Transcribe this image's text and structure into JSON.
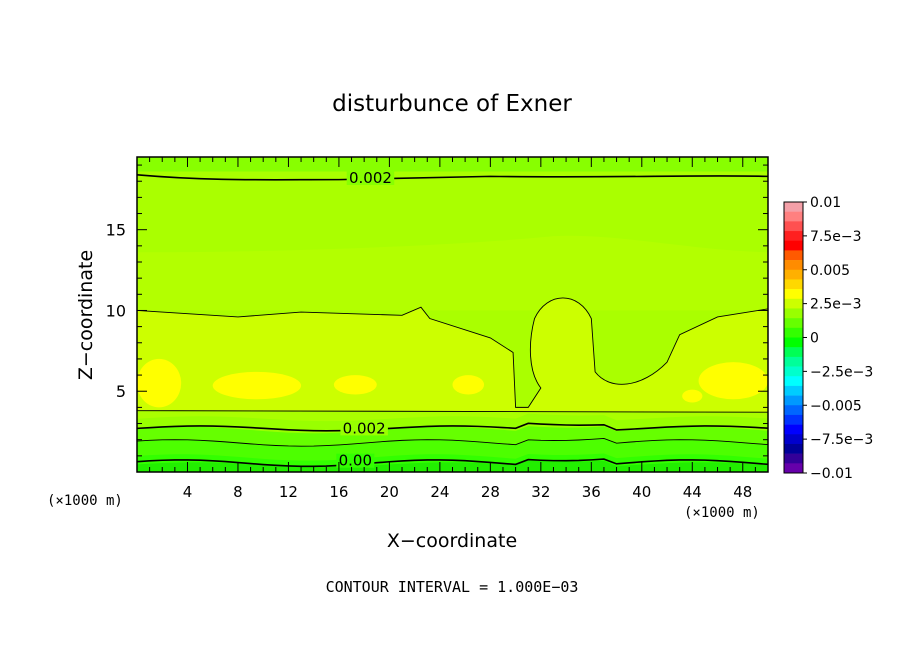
{
  "chart_data": {
    "type": "heatmap",
    "title": "disturbunce of Exner",
    "xlabel": "X−coordinate",
    "ylabel": "Z−coordinate",
    "x_unit": "(×1000 m)",
    "y_unit": "(×1000 m)",
    "footer": "CONTOUR INTERVAL = 1.000E−03",
    "xlim": [
      0,
      50
    ],
    "ylim": [
      0,
      19.5
    ],
    "x_ticks": [
      {
        "value": 4,
        "label": "4"
      },
      {
        "value": 8,
        "label": "8"
      },
      {
        "value": 12,
        "label": "12"
      },
      {
        "value": 16,
        "label": "16"
      },
      {
        "value": 20,
        "label": "20"
      },
      {
        "value": 24,
        "label": "24"
      },
      {
        "value": 28,
        "label": "28"
      },
      {
        "value": 32,
        "label": "32"
      },
      {
        "value": 36,
        "label": "36"
      },
      {
        "value": 40,
        "label": "40"
      },
      {
        "value": 44,
        "label": "44"
      },
      {
        "value": 48,
        "label": "48"
      }
    ],
    "y_ticks": [
      {
        "value": 5,
        "label": "5"
      },
      {
        "value": 10,
        "label": "10"
      },
      {
        "value": 15,
        "label": "15"
      }
    ],
    "contour_labels": [
      {
        "text": "0.002",
        "x": 18.5,
        "z": 18.2
      },
      {
        "text": "0.002",
        "x": 18.0,
        "z": 2.7
      },
      {
        "text": "0.00",
        "x": 17.3,
        "z": 0.7
      }
    ],
    "colorbar": {
      "levels": [
        {
          "value": 0.01,
          "label": "0.01"
        },
        {
          "value": 0.0075,
          "label": "7.5e−3"
        },
        {
          "value": 0.005,
          "label": "0.005"
        },
        {
          "value": 0.0025,
          "label": "2.5e−3"
        },
        {
          "value": 0,
          "label": "0"
        },
        {
          "value": -0.0025,
          "label": "−2.5e−3"
        },
        {
          "value": -0.005,
          "label": "−0.005"
        },
        {
          "value": -0.0075,
          "label": "−7.5e−3"
        },
        {
          "value": -0.01,
          "label": "−0.01"
        }
      ],
      "colors": [
        "#f4a0a8",
        "#ff8080",
        "#ff5050",
        "#ff2020",
        "#ff0000",
        "#ff5a00",
        "#ff8c00",
        "#ffb000",
        "#ffd800",
        "#ffff00",
        "#ccff00",
        "#99ff00",
        "#66ff00",
        "#33ff00",
        "#00ff00",
        "#00ff55",
        "#00ff99",
        "#00ffcc",
        "#00ffff",
        "#00ccff",
        "#0099ff",
        "#0066ff",
        "#0033ff",
        "#0000ff",
        "#0000cc",
        "#000099",
        "#330099",
        "#6600aa"
      ]
    },
    "field_colors": {
      "lowest": "#33ff00",
      "low": "#66ff00",
      "mid": "#99ff00",
      "upper": "#aaff00",
      "top": "#88ff00",
      "yellow_green": "#ccff00",
      "yellow": "#ffff00"
    }
  }
}
